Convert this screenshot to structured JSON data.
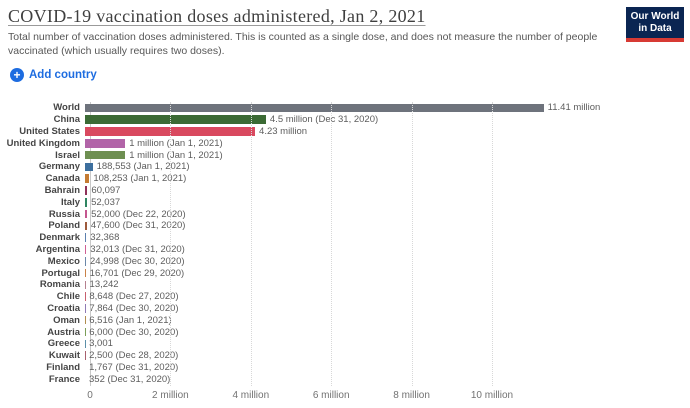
{
  "header": {
    "title": "COVID-19 vaccination doses administered, Jan 2, 2021",
    "subtitle": "Total number of vaccination doses administered. This is counted as a single dose, and does not measure the number of people vaccinated (which usually requires two doses).",
    "add_country_label": "Add country",
    "add_country_color": "#1d6ce0",
    "logo": {
      "line1": "Our World",
      "line2": "in Data",
      "bg": "#0a2552",
      "accent": "#d73a34"
    }
  },
  "chart_data": {
    "type": "bar",
    "orientation": "horizontal",
    "title": "COVID-19 vaccination doses administered, Jan 2, 2021",
    "xlabel": "",
    "ylabel": "",
    "grid": "vertical-dotted",
    "xlim": [
      0,
      14900000
    ],
    "ticks": [
      {
        "label": "0",
        "value": 0
      },
      {
        "label": "2 million",
        "value": 2000000
      },
      {
        "label": "4 million",
        "value": 4000000
      },
      {
        "label": "6 million",
        "value": 6000000
      },
      {
        "label": "8 million",
        "value": 8000000
      },
      {
        "label": "10 million",
        "value": 10000000
      }
    ],
    "bars": [
      {
        "entity": "World",
        "value": 11410000,
        "label": "11.41 million",
        "color": "#6e737c"
      },
      {
        "entity": "China",
        "value": 4500000,
        "label": "4.5 million (Dec 31, 2020)",
        "color": "#3b6a34"
      },
      {
        "entity": "United States",
        "value": 4230000,
        "label": "4.23 million",
        "color": "#d9495f"
      },
      {
        "entity": "United Kingdom",
        "value": 1000000,
        "label": "1 million (Jan 1, 2021)",
        "color": "#b264a8"
      },
      {
        "entity": "Israel",
        "value": 1000000,
        "label": "1 million (Jan 1, 2021)",
        "color": "#6e8f51"
      },
      {
        "entity": "Germany",
        "value": 188553,
        "label": "188,553 (Jan 1, 2021)",
        "color": "#3d6f9e"
      },
      {
        "entity": "Canada",
        "value": 108253,
        "label": "108,253 (Jan 1, 2021)",
        "color": "#c57b32"
      },
      {
        "entity": "Bahrain",
        "value": 60097,
        "label": "60,097",
        "color": "#8e3159"
      },
      {
        "entity": "Italy",
        "value": 52037,
        "label": "52,037",
        "color": "#2f8561"
      },
      {
        "entity": "Russia",
        "value": 52000,
        "label": "52,000 (Dec 22, 2020)",
        "color": "#c4568f"
      },
      {
        "entity": "Poland",
        "value": 47600,
        "label": "47,600 (Dec 31, 2020)",
        "color": "#9e5a3c"
      },
      {
        "entity": "Denmark",
        "value": 32368,
        "label": "32,368",
        "color": "#5b7fae"
      },
      {
        "entity": "Argentina",
        "value": 32013,
        "label": "32,013 (Dec 31, 2020)",
        "color": "#d05f93"
      },
      {
        "entity": "Mexico",
        "value": 24998,
        "label": "24,998 (Dec 30, 2020)",
        "color": "#6b87a8"
      },
      {
        "entity": "Portugal",
        "value": 16701,
        "label": "16,701 (Dec 29, 2020)",
        "color": "#c98147"
      },
      {
        "entity": "Romania",
        "value": 13242,
        "label": "13,242",
        "color": "#b5808e"
      },
      {
        "entity": "Chile",
        "value": 8648,
        "label": "8,648 (Dec 27, 2020)",
        "color": "#c75f6e"
      },
      {
        "entity": "Croatia",
        "value": 7864,
        "label": "7,864 (Dec 30, 2020)",
        "color": "#8f7bb4"
      },
      {
        "entity": "Oman",
        "value": 6516,
        "label": "6,516 (Jan 1, 2021)",
        "color": "#b08d4e"
      },
      {
        "entity": "Austria",
        "value": 6000,
        "label": "6,000 (Dec 30, 2020)",
        "color": "#7a9e56"
      },
      {
        "entity": "Greece",
        "value": 3001,
        "label": "3,001",
        "color": "#5b8fa8"
      },
      {
        "entity": "Kuwait",
        "value": 2500,
        "label": "2,500 (Dec 28, 2020)",
        "color": "#a8606e"
      },
      {
        "entity": "Finland",
        "value": 1767,
        "label": "1,767 (Dec 31, 2020)",
        "color": "#6b9e8f"
      },
      {
        "entity": "France",
        "value": 352,
        "label": "352 (Dec 31, 2020)",
        "color": "#4f6ea8"
      }
    ]
  }
}
